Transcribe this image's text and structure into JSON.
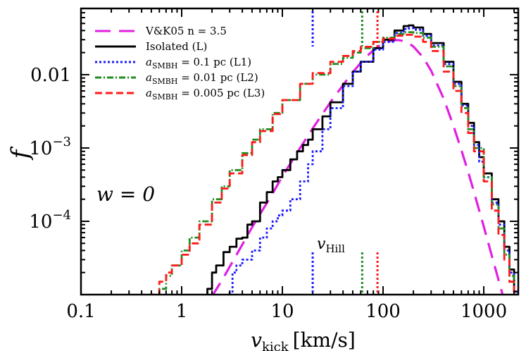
{
  "chart_data": {
    "type": "line",
    "title": "",
    "xlabel": {
      "symbol": "v",
      "subscript": "kick",
      "unit": "[km/s]"
    },
    "ylabel": "f",
    "xscale": "log",
    "yscale": "log",
    "xlim": [
      0.1,
      2200
    ],
    "ylim": [
      1e-05,
      0.08
    ],
    "xticks": [
      {
        "value": 0.1,
        "label": "0.1"
      },
      {
        "value": 1,
        "label": "1"
      },
      {
        "value": 10,
        "label": "10"
      },
      {
        "value": 100,
        "label": "100"
      },
      {
        "value": 1000,
        "label": "1000"
      }
    ],
    "yticks": [
      {
        "value": 0.01,
        "label": "0.01",
        "exp": ""
      },
      {
        "value": 0.001,
        "label": "10",
        "exp": "−3"
      },
      {
        "value": 0.0001,
        "label": "10",
        "exp": "−4"
      }
    ],
    "legend_position": "top-left",
    "annotation_w": "w = 0",
    "vhill_label": {
      "symbol": "v",
      "subscript": "Hill"
    },
    "vhill_values": [
      {
        "series": "L1",
        "value": 20,
        "color": "#1a1aff"
      },
      {
        "series": "L2",
        "value": 62,
        "color": "#228b22"
      },
      {
        "series": "L3",
        "value": 88,
        "color": "#ff1a1a"
      }
    ],
    "series": [
      {
        "name": "V&K05   n = 3.5",
        "legend": {
          "prefix": "",
          "sub": "",
          "text": "V&K05   n = 3.5"
        },
        "color": "#e020e0",
        "style": "longdash",
        "step": false,
        "points": [
          [
            2.0,
            9.5e-06
          ],
          [
            2.5,
            1.55e-05
          ],
          [
            3,
            2.4e-05
          ],
          [
            4,
            4.8e-05
          ],
          [
            5,
            8.3e-05
          ],
          [
            6,
            0.000125
          ],
          [
            8,
            0.00024
          ],
          [
            10,
            0.00041
          ],
          [
            15,
            0.001
          ],
          [
            20,
            0.00185
          ],
          [
            30,
            0.0042
          ],
          [
            40,
            0.0072
          ],
          [
            50,
            0.0108
          ],
          [
            60,
            0.0145
          ],
          [
            70,
            0.0182
          ],
          [
            80,
            0.0215
          ],
          [
            90,
            0.0243
          ],
          [
            100,
            0.0265
          ],
          [
            120,
            0.029
          ],
          [
            140,
            0.0297
          ],
          [
            160,
            0.0288
          ],
          [
            180,
            0.0268
          ],
          [
            200,
            0.0242
          ],
          [
            250,
            0.0172
          ],
          [
            300,
            0.0113
          ],
          [
            400,
            0.0047
          ],
          [
            500,
            0.002
          ],
          [
            600,
            0.00093
          ],
          [
            700,
            0.00047
          ],
          [
            800,
            0.00025
          ],
          [
            1000,
            8.5e-05
          ],
          [
            1200,
            3.4e-05
          ],
          [
            1400,
            1.6e-05
          ],
          [
            1600,
            8.2e-06
          ]
        ]
      },
      {
        "name": "Isolated (L)",
        "legend": {
          "prefix": "",
          "sub": "",
          "text": "Isolated (L)"
        },
        "color": "#000000",
        "style": "solid",
        "step": true,
        "points": [
          [
            1.8,
            1.2e-05
          ],
          [
            2.0,
            2e-05
          ],
          [
            2.2,
            2.5e-05
          ],
          [
            2.6,
            3.8e-05
          ],
          [
            3.0,
            4.5e-05
          ],
          [
            3.5,
            5.8e-05
          ],
          [
            4,
            6e-05
          ],
          [
            4.5,
            9e-05
          ],
          [
            5,
            0.0001
          ],
          [
            6,
            0.00018
          ],
          [
            7,
            0.00025
          ],
          [
            8,
            0.00035
          ],
          [
            9,
            0.0004
          ],
          [
            10,
            0.0005
          ],
          [
            12,
            0.0007
          ],
          [
            14,
            0.0009
          ],
          [
            16,
            0.0011
          ],
          [
            18,
            0.0013
          ],
          [
            20,
            0.0018
          ],
          [
            25,
            0.0027
          ],
          [
            30,
            0.0042
          ],
          [
            40,
            0.0075
          ],
          [
            50,
            0.011
          ],
          [
            60,
            0.015
          ],
          [
            80,
            0.023
          ],
          [
            100,
            0.03
          ],
          [
            130,
            0.04
          ],
          [
            160,
            0.046
          ],
          [
            180,
            0.047
          ],
          [
            200,
            0.044
          ],
          [
            250,
            0.036
          ],
          [
            300,
            0.027
          ],
          [
            400,
            0.015
          ],
          [
            500,
            0.008
          ],
          [
            600,
            0.004
          ],
          [
            700,
            0.0022
          ],
          [
            800,
            0.0012
          ],
          [
            900,
            0.00075
          ],
          [
            1000,
            0.00045
          ],
          [
            1200,
            0.0002
          ],
          [
            1400,
            0.0001
          ],
          [
            1600,
            4.5e-05
          ],
          [
            1800,
            2.2e-05
          ],
          [
            2000,
            1.1e-05
          ]
        ]
      },
      {
        "name": "a_SMBH = 0.1 pc  (L1)",
        "legend": {
          "prefix": "a",
          "sub": "SMBH",
          "text": " = 0.1 pc  (L1)"
        },
        "color": "#1a1aff",
        "style": "dotted",
        "step": true,
        "points": [
          [
            3.0,
            1.1e-05
          ],
          [
            3.2,
            2e-05
          ],
          [
            3.5,
            2.5e-05
          ],
          [
            4,
            3e-05
          ],
          [
            5,
            4e-05
          ],
          [
            6,
            6e-05
          ],
          [
            7,
            8e-05
          ],
          [
            8,
            0.0001
          ],
          [
            9,
            0.00012
          ],
          [
            10,
            0.00014
          ],
          [
            12,
            0.0002
          ],
          [
            15,
            0.00035
          ],
          [
            18,
            0.0006
          ],
          [
            20,
            0.0009
          ],
          [
            25,
            0.0018
          ],
          [
            30,
            0.0035
          ],
          [
            40,
            0.007
          ],
          [
            50,
            0.011
          ],
          [
            60,
            0.015
          ],
          [
            80,
            0.022
          ],
          [
            100,
            0.028
          ],
          [
            130,
            0.037
          ],
          [
            160,
            0.042
          ],
          [
            180,
            0.043
          ],
          [
            200,
            0.041
          ],
          [
            250,
            0.034
          ],
          [
            300,
            0.025
          ],
          [
            400,
            0.014
          ],
          [
            500,
            0.0075
          ],
          [
            600,
            0.0038
          ],
          [
            700,
            0.002
          ],
          [
            800,
            0.0011
          ],
          [
            900,
            0.00065
          ],
          [
            1000,
            0.0004
          ],
          [
            1200,
            0.00018
          ],
          [
            1400,
            9e-05
          ],
          [
            1600,
            4e-05
          ],
          [
            1800,
            2e-05
          ],
          [
            2000,
            1.1e-05
          ]
        ]
      },
      {
        "name": "a_SMBH = 0.01 pc  (L2)",
        "legend": {
          "prefix": "a",
          "sub": "SMBH",
          "text": " = 0.01 pc  (L2)"
        },
        "color": "#228b22",
        "style": "dashdot",
        "step": true,
        "points": [
          [
            0.6,
            1.2e-05
          ],
          [
            0.7,
            1.8e-05
          ],
          [
            0.8,
            2.5e-05
          ],
          [
            1.0,
            4e-05
          ],
          [
            1.2,
            6e-05
          ],
          [
            1.5,
            0.0001
          ],
          [
            2.0,
            0.0002
          ],
          [
            2.5,
            0.0003
          ],
          [
            3.0,
            0.0005
          ],
          [
            4,
            0.00085
          ],
          [
            5,
            0.0013
          ],
          [
            6,
            0.0018
          ],
          [
            8,
            0.003
          ],
          [
            10,
            0.0045
          ],
          [
            15,
            0.0075
          ],
          [
            20,
            0.01
          ],
          [
            30,
            0.014
          ],
          [
            40,
            0.017
          ],
          [
            50,
            0.02
          ],
          [
            60,
            0.023
          ],
          [
            80,
            0.028
          ],
          [
            100,
            0.032
          ],
          [
            130,
            0.036
          ],
          [
            160,
            0.038
          ],
          [
            200,
            0.037
          ],
          [
            250,
            0.032
          ],
          [
            300,
            0.024
          ],
          [
            400,
            0.013
          ],
          [
            500,
            0.007
          ],
          [
            600,
            0.0035
          ],
          [
            700,
            0.0018
          ],
          [
            800,
            0.001
          ],
          [
            1000,
            0.0004
          ],
          [
            1200,
            0.00017
          ],
          [
            1400,
            8e-05
          ],
          [
            1600,
            3.5e-05
          ],
          [
            1800,
            1.8e-05
          ],
          [
            2000,
            1e-05
          ]
        ]
      },
      {
        "name": "a_SMBH = 0.005 pc  (L3)",
        "legend": {
          "prefix": "a",
          "sub": "SMBH",
          "text": " = 0.005 pc  (L3)"
        },
        "color": "#ff1a1a",
        "style": "dashed",
        "step": true,
        "points": [
          [
            0.5,
            1e-05
          ],
          [
            0.6,
            1.5e-05
          ],
          [
            0.7,
            2e-05
          ],
          [
            0.8,
            2.5e-05
          ],
          [
            1.0,
            3.5e-05
          ],
          [
            1.2,
            5e-05
          ],
          [
            1.5,
            9e-05
          ],
          [
            2.0,
            0.00018
          ],
          [
            2.5,
            0.00028
          ],
          [
            3.0,
            0.00045
          ],
          [
            4,
            0.0008
          ],
          [
            5,
            0.0012
          ],
          [
            6,
            0.0017
          ],
          [
            8,
            0.0029
          ],
          [
            10,
            0.0045
          ],
          [
            15,
            0.0075
          ],
          [
            20,
            0.0105
          ],
          [
            30,
            0.015
          ],
          [
            40,
            0.018
          ],
          [
            50,
            0.021
          ],
          [
            60,
            0.024
          ],
          [
            80,
            0.028
          ],
          [
            100,
            0.031
          ],
          [
            130,
            0.034
          ],
          [
            160,
            0.035
          ],
          [
            200,
            0.033
          ],
          [
            250,
            0.028
          ],
          [
            300,
            0.021
          ],
          [
            400,
            0.011
          ],
          [
            500,
            0.006
          ],
          [
            600,
            0.003
          ],
          [
            700,
            0.0016
          ],
          [
            800,
            0.0009
          ],
          [
            1000,
            0.00035
          ],
          [
            1200,
            0.00014
          ],
          [
            1400,
            6.5e-05
          ],
          [
            1600,
            3e-05
          ],
          [
            1800,
            1.5e-05
          ],
          [
            2000,
            8e-06
          ]
        ]
      }
    ]
  }
}
